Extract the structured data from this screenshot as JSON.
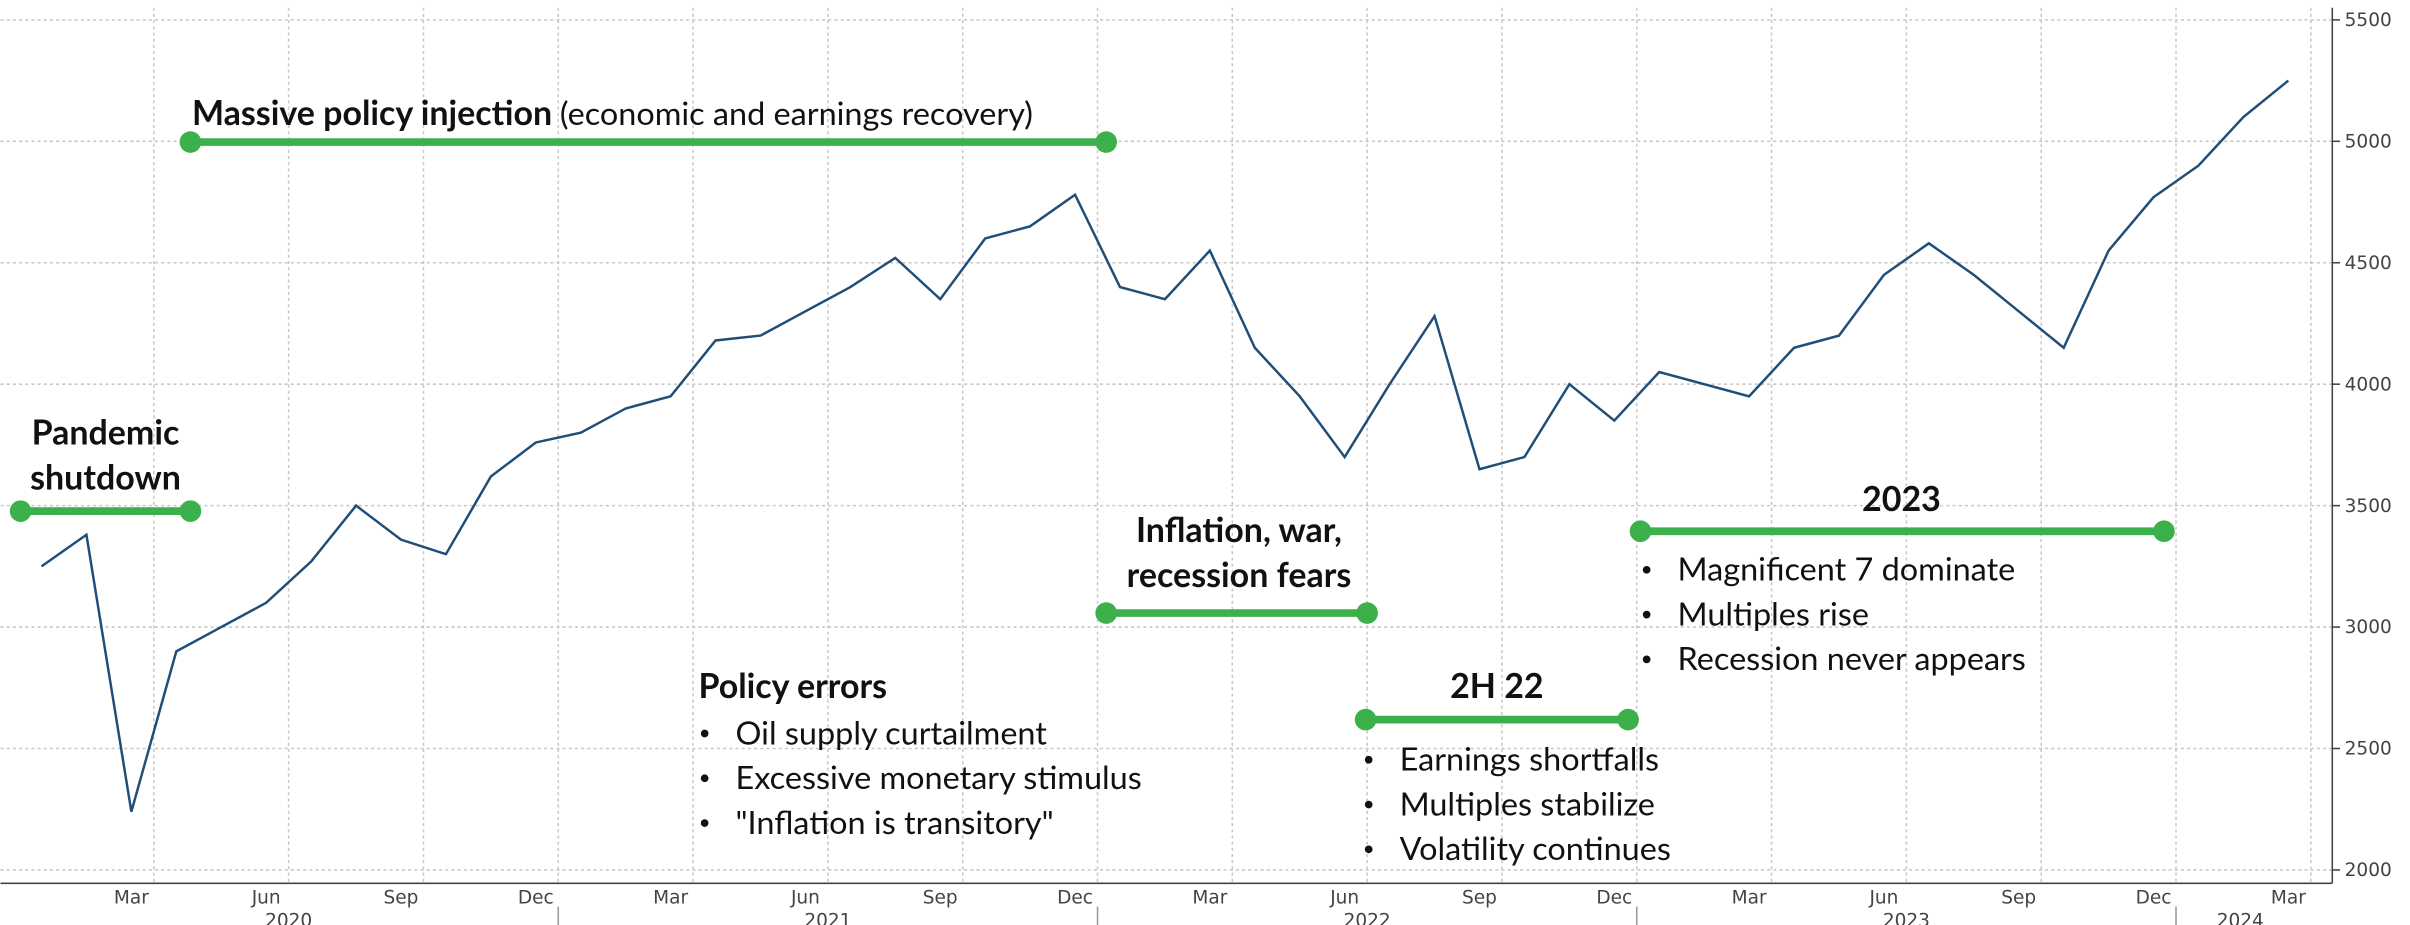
{
  "chart_data": {
    "type": "line",
    "x": [
      "2020-01",
      "2020-02",
      "2020-03",
      "2020-04",
      "2020-05",
      "2020-06",
      "2020-07",
      "2020-08",
      "2020-09",
      "2020-10",
      "2020-11",
      "2020-12",
      "2021-01",
      "2021-02",
      "2021-03",
      "2021-04",
      "2021-05",
      "2021-06",
      "2021-07",
      "2021-08",
      "2021-09",
      "2021-10",
      "2021-11",
      "2021-12",
      "2022-01",
      "2022-02",
      "2022-03",
      "2022-04",
      "2022-05",
      "2022-06",
      "2022-07",
      "2022-08",
      "2022-09",
      "2022-10",
      "2022-11",
      "2022-12",
      "2023-01",
      "2023-02",
      "2023-03",
      "2023-04",
      "2023-05",
      "2023-06",
      "2023-07",
      "2023-08",
      "2023-09",
      "2023-10",
      "2023-11",
      "2023-12",
      "2024-01",
      "2024-02",
      "2024-03"
    ],
    "series": [
      {
        "color": "#1f4e79",
        "values": [
          3250,
          3380,
          2240,
          2900,
          3000,
          3100,
          3270,
          3500,
          3360,
          3300,
          3620,
          3760,
          3800,
          3900,
          3950,
          4180,
          4200,
          4300,
          4400,
          4520,
          4350,
          4600,
          4650,
          4780,
          4400,
          4350,
          4550,
          4150,
          3950,
          3700,
          4000,
          4280,
          3650,
          3700,
          4000,
          3850,
          4050,
          4000,
          3950,
          4150,
          4200,
          4450,
          4580,
          4450,
          4300,
          4150,
          4550,
          4770,
          4900,
          5100,
          5250
        ]
      }
    ],
    "ylim": [
      1945,
      5550
    ],
    "yticks": [
      2000,
      2500,
      3000,
      3500,
      4000,
      4500,
      5000,
      5500
    ],
    "xticks": [
      {
        "value": "2020-03",
        "label": "Mar"
      },
      {
        "value": "2020-06",
        "label": "Jun"
      },
      {
        "value": "2020-09",
        "label": "Sep"
      },
      {
        "value": "2020-12",
        "label": "Dec"
      },
      {
        "value": "2021-03",
        "label": "Mar"
      },
      {
        "value": "2021-06",
        "label": "Jun"
      },
      {
        "value": "2021-09",
        "label": "Sep"
      },
      {
        "value": "2021-12",
        "label": "Dec"
      },
      {
        "value": "2022-03",
        "label": "Mar"
      },
      {
        "value": "2022-06",
        "label": "Jun"
      },
      {
        "value": "2022-09",
        "label": "Sep"
      },
      {
        "value": "2022-12",
        "label": "Dec"
      },
      {
        "value": "2023-03",
        "label": "Mar"
      },
      {
        "value": "2023-06",
        "label": "Jun"
      },
      {
        "value": "2023-09",
        "label": "Sep"
      },
      {
        "value": "2023-12",
        "label": "Dec"
      },
      {
        "value": "2024-03",
        "label": "Mar"
      }
    ],
    "year_labels": [
      "2020",
      "2021",
      "2022",
      "2023",
      "2024"
    ],
    "grid": true,
    "annotation_color": "#3cb04a",
    "annotations": [
      {
        "title": [
          "Pandemic",
          "shutdown"
        ]
      },
      {
        "title": [
          "Massive policy injection"
        ],
        "note": "(economic and earnings recovery)"
      },
      {
        "title": [
          "Policy errors"
        ],
        "bullets": [
          "Oil supply curtailment",
          "Excessive monetary stimulus",
          "\"Inflation is transitory\""
        ]
      },
      {
        "title": [
          "Inflation, war,",
          "recession fears"
        ]
      },
      {
        "title": [
          "2H 22"
        ],
        "bullets": [
          "Earnings shortfalls",
          "Multiples stabilize",
          "Volatility continues"
        ]
      },
      {
        "title": [
          "2023"
        ],
        "bullets": [
          "Magnificent 7 dominate",
          "Multiples rise",
          "Recession never appears"
        ]
      }
    ]
  }
}
